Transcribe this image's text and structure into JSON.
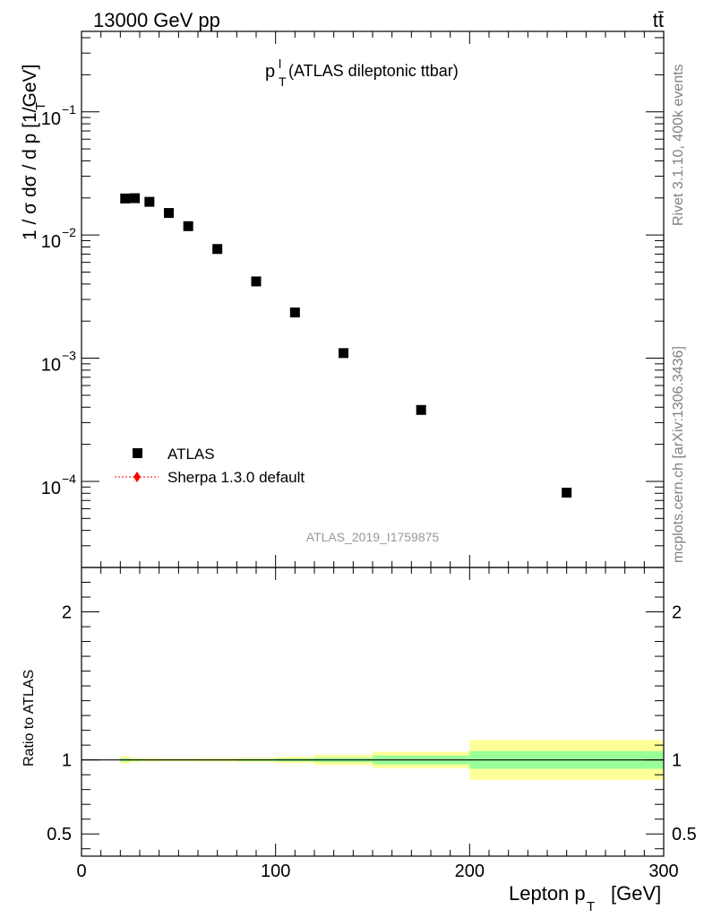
{
  "header": {
    "energy_label": "13000 GeV pp",
    "process_label": "tt̄"
  },
  "side_labels": {
    "rivet": "Rivet 3.1.10,  400k events",
    "mcplots": "mcplots.cern.ch [arXiv:1306.3436]"
  },
  "chart_data": {
    "type": "scatter",
    "title_main": "p",
    "title_sup": "l",
    "title_sub": "T",
    "title_rest": " (ATLAS dileptonic ttbar)",
    "analysis_id": "ATLAS_2019_I1759875",
    "ylabel": "1 / σ  dσ / d p  [1/GeV]",
    "xlabel": "Lepton p  [GeV]",
    "xlabel_sub": "T",
    "ratio_ylabel": "Ratio to ATLAS",
    "x_range": [
      0,
      300
    ],
    "y_range_log": [
      2e-05,
      0.45
    ],
    "ratio_range": [
      0.35,
      2.3
    ],
    "x_ticks": [
      0,
      100,
      200,
      300
    ],
    "x_tick_labels": [
      "0",
      "100",
      "200",
      "300"
    ],
    "y_ticks": [
      -4,
      -3,
      -2,
      -1
    ],
    "y_tick_labels": [
      "10",
      "10",
      "10",
      "10"
    ],
    "y_tick_exps": [
      "−4",
      "−3",
      "−2",
      "−1"
    ],
    "ratio_ticks": [
      0.5,
      1,
      2
    ],
    "ratio_tick_labels": [
      "0.5",
      "1",
      "2"
    ],
    "legend": [
      {
        "label": "ATLAS",
        "marker": "square",
        "color": "#000000"
      },
      {
        "label": "Sherpa 1.3.0 default",
        "marker": "diamond",
        "color": "#ff0000"
      }
    ],
    "series": [
      {
        "name": "ATLAS",
        "points": [
          {
            "x": 22.5,
            "xlo": 20,
            "xhi": 25,
            "y": 0.0198
          },
          {
            "x": 27.5,
            "xlo": 25,
            "xhi": 30,
            "y": 0.0199
          },
          {
            "x": 35,
            "xlo": 30,
            "xhi": 40,
            "y": 0.0186
          },
          {
            "x": 45,
            "xlo": 40,
            "xhi": 50,
            "y": 0.0151
          },
          {
            "x": 55,
            "xlo": 50,
            "xhi": 60,
            "y": 0.0118
          },
          {
            "x": 70,
            "xlo": 60,
            "xhi": 80,
            "y": 0.0077
          },
          {
            "x": 90,
            "xlo": 80,
            "xhi": 100,
            "y": 0.0042
          },
          {
            "x": 110,
            "xlo": 100,
            "xhi": 120,
            "y": 0.00235
          },
          {
            "x": 135,
            "xlo": 120,
            "xhi": 150,
            "y": 0.0011
          },
          {
            "x": 175,
            "xlo": 150,
            "xhi": 200,
            "y": 0.00038
          },
          {
            "x": 250,
            "xlo": 200,
            "xhi": 300,
            "y": 8.1e-05
          }
        ]
      }
    ],
    "ratio_bands": [
      {
        "xlo": 20,
        "xhi": 25,
        "stat_lo": 0.99,
        "stat_hi": 1.01,
        "tot_lo": 0.975,
        "tot_hi": 1.025
      },
      {
        "xlo": 25,
        "xhi": 30,
        "stat_lo": 0.993,
        "stat_hi": 1.007,
        "tot_lo": 0.985,
        "tot_hi": 1.015
      },
      {
        "xlo": 30,
        "xhi": 40,
        "stat_lo": 0.995,
        "stat_hi": 1.005,
        "tot_lo": 0.988,
        "tot_hi": 1.012
      },
      {
        "xlo": 40,
        "xhi": 50,
        "stat_lo": 0.995,
        "stat_hi": 1.005,
        "tot_lo": 0.99,
        "tot_hi": 1.01
      },
      {
        "xlo": 50,
        "xhi": 60,
        "stat_lo": 0.995,
        "stat_hi": 1.005,
        "tot_lo": 0.99,
        "tot_hi": 1.01
      },
      {
        "xlo": 60,
        "xhi": 80,
        "stat_lo": 0.995,
        "stat_hi": 1.005,
        "tot_lo": 0.988,
        "tot_hi": 1.012
      },
      {
        "xlo": 80,
        "xhi": 100,
        "stat_lo": 0.993,
        "stat_hi": 1.007,
        "tot_lo": 0.985,
        "tot_hi": 1.015
      },
      {
        "xlo": 100,
        "xhi": 120,
        "stat_lo": 0.99,
        "stat_hi": 1.01,
        "tot_lo": 0.978,
        "tot_hi": 1.022
      },
      {
        "xlo": 120,
        "xhi": 150,
        "stat_lo": 0.985,
        "stat_hi": 1.015,
        "tot_lo": 0.965,
        "tot_hi": 1.035
      },
      {
        "xlo": 150,
        "xhi": 200,
        "stat_lo": 0.97,
        "stat_hi": 1.03,
        "tot_lo": 0.945,
        "tot_hi": 1.055
      },
      {
        "xlo": 200,
        "xhi": 300,
        "stat_lo": 0.94,
        "stat_hi": 1.06,
        "tot_lo": 0.865,
        "tot_hi": 1.135
      }
    ],
    "colors": {
      "stat_band": "#99ff99",
      "total_band": "#ffff99",
      "data": "#000000",
      "mc": "#ff0000",
      "analysis_label": "#999999",
      "side_label": "#808080"
    }
  }
}
